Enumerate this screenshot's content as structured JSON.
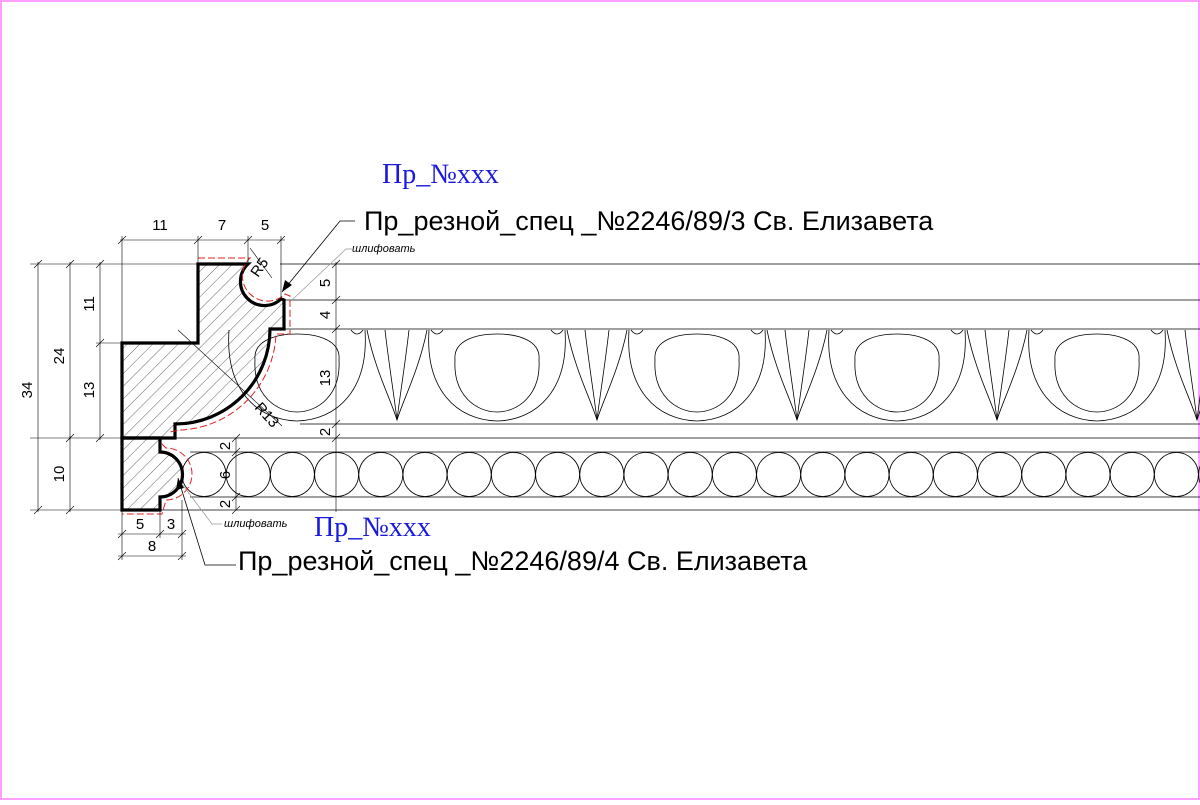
{
  "labels": {
    "profile_code_top": "Пр_№xxx",
    "profile_code_bottom": "Пр_№xxx",
    "callout_top": "Пр_резной_спец _№2246/89/3 Св. Елизавета",
    "callout_bottom": "Пр_резной_спец _№2246/89/4 Св. Елизавета",
    "note_sand_top": "шлифовать",
    "note_sand_bottom": "шлифовать"
  },
  "dimensions": {
    "top_11": "11",
    "top_7": "7",
    "top_5": "5",
    "left_34": "34",
    "left_24": "24",
    "left_11": "11",
    "left_13": "13",
    "left_10": "10",
    "bottom_5": "5",
    "bottom_3": "3",
    "bottom_8": "8",
    "radius_r5": "R5",
    "radius_r13": "R13",
    "right_5": "5",
    "right_4": "4",
    "right_13": "13",
    "right_2a": "2",
    "right_2b": "2",
    "right_6": "6",
    "right_2c": "2"
  },
  "colors": {
    "border": "#ff80ff",
    "annotation_blue": "#1a1adf",
    "sanding_line": "#e02020"
  }
}
